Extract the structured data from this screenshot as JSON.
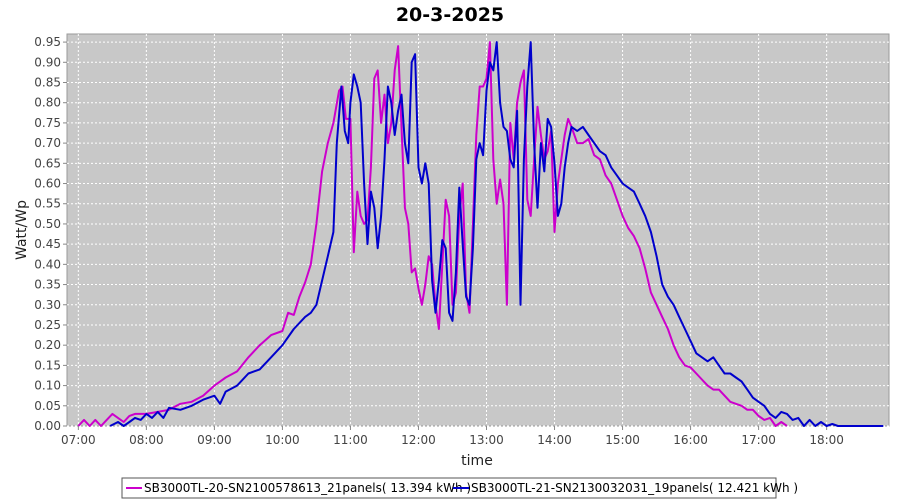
{
  "chart_data": {
    "type": "line",
    "title": "20-3-2025",
    "xlabel": "time",
    "ylabel": "Watt/Wp",
    "xlim": [
      "06:50",
      "18:55"
    ],
    "ylim": [
      0,
      0.97
    ],
    "grid": true,
    "legend_placement": "bottom-center",
    "x_ticks": [
      "07:00",
      "08:00",
      "09:00",
      "10:00",
      "11:00",
      "12:00",
      "13:00",
      "14:00",
      "15:00",
      "16:00",
      "17:00",
      "18:00"
    ],
    "y_ticks": [
      "0.00",
      "0.05",
      "0.10",
      "0.15",
      "0.20",
      "0.25",
      "0.30",
      "0.35",
      "0.40",
      "0.45",
      "0.50",
      "0.55",
      "0.60",
      "0.65",
      "0.70",
      "0.75",
      "0.80",
      "0.85",
      "0.90",
      "0.95"
    ],
    "series": [
      {
        "name": "SB3000TL-20-SN2100578613_21panels( 13.394 kWh )",
        "color": "#cc00cc",
        "points": [
          [
            "07:00",
            0.0
          ],
          [
            "07:05",
            0.015
          ],
          [
            "07:10",
            0.0
          ],
          [
            "07:15",
            0.015
          ],
          [
            "07:20",
            0.0
          ],
          [
            "07:25",
            0.015
          ],
          [
            "07:30",
            0.03
          ],
          [
            "07:35",
            0.02
          ],
          [
            "07:40",
            0.01
          ],
          [
            "07:45",
            0.025
          ],
          [
            "07:50",
            0.03
          ],
          [
            "08:00",
            0.03
          ],
          [
            "08:10",
            0.035
          ],
          [
            "08:20",
            0.04
          ],
          [
            "08:30",
            0.055
          ],
          [
            "08:40",
            0.06
          ],
          [
            "08:50",
            0.075
          ],
          [
            "09:00",
            0.1
          ],
          [
            "09:10",
            0.12
          ],
          [
            "09:20",
            0.135
          ],
          [
            "09:30",
            0.17
          ],
          [
            "09:40",
            0.2
          ],
          [
            "09:50",
            0.225
          ],
          [
            "10:00",
            0.235
          ],
          [
            "10:05",
            0.28
          ],
          [
            "10:10",
            0.275
          ],
          [
            "10:15",
            0.32
          ],
          [
            "10:20",
            0.355
          ],
          [
            "10:25",
            0.4
          ],
          [
            "10:30",
            0.5
          ],
          [
            "10:35",
            0.63
          ],
          [
            "10:40",
            0.7
          ],
          [
            "10:45",
            0.75
          ],
          [
            "10:50",
            0.83
          ],
          [
            "10:53",
            0.84
          ],
          [
            "10:56",
            0.76
          ],
          [
            "11:00",
            0.76
          ],
          [
            "11:03",
            0.43
          ],
          [
            "11:06",
            0.58
          ],
          [
            "11:09",
            0.52
          ],
          [
            "11:12",
            0.5
          ],
          [
            "11:15",
            0.51
          ],
          [
            "11:18",
            0.64
          ],
          [
            "11:21",
            0.86
          ],
          [
            "11:24",
            0.88
          ],
          [
            "11:27",
            0.75
          ],
          [
            "11:30",
            0.82
          ],
          [
            "11:33",
            0.7
          ],
          [
            "11:36",
            0.75
          ],
          [
            "11:39",
            0.88
          ],
          [
            "11:42",
            0.94
          ],
          [
            "11:45",
            0.74
          ],
          [
            "11:48",
            0.54
          ],
          [
            "11:51",
            0.5
          ],
          [
            "11:54",
            0.38
          ],
          [
            "11:57",
            0.39
          ],
          [
            "12:00",
            0.34
          ],
          [
            "12:03",
            0.3
          ],
          [
            "12:06",
            0.35
          ],
          [
            "12:09",
            0.42
          ],
          [
            "12:12",
            0.4
          ],
          [
            "12:15",
            0.3
          ],
          [
            "12:18",
            0.24
          ],
          [
            "12:21",
            0.4
          ],
          [
            "12:24",
            0.56
          ],
          [
            "12:27",
            0.52
          ],
          [
            "12:30",
            0.3
          ],
          [
            "12:33",
            0.33
          ],
          [
            "12:36",
            0.52
          ],
          [
            "12:39",
            0.6
          ],
          [
            "12:42",
            0.33
          ],
          [
            "12:45",
            0.28
          ],
          [
            "12:48",
            0.5
          ],
          [
            "12:51",
            0.72
          ],
          [
            "12:54",
            0.84
          ],
          [
            "12:57",
            0.84
          ],
          [
            "13:00",
            0.86
          ],
          [
            "13:03",
            0.95
          ],
          [
            "13:06",
            0.66
          ],
          [
            "13:09",
            0.55
          ],
          [
            "13:12",
            0.61
          ],
          [
            "13:15",
            0.55
          ],
          [
            "13:18",
            0.3
          ],
          [
            "13:21",
            0.75
          ],
          [
            "13:24",
            0.66
          ],
          [
            "13:27",
            0.8
          ],
          [
            "13:30",
            0.85
          ],
          [
            "13:33",
            0.88
          ],
          [
            "13:36",
            0.56
          ],
          [
            "13:39",
            0.52
          ],
          [
            "13:42",
            0.66
          ],
          [
            "13:45",
            0.79
          ],
          [
            "13:48",
            0.72
          ],
          [
            "13:51",
            0.66
          ],
          [
            "13:54",
            0.68
          ],
          [
            "13:57",
            0.73
          ],
          [
            "14:00",
            0.48
          ],
          [
            "14:03",
            0.6
          ],
          [
            "14:06",
            0.66
          ],
          [
            "14:09",
            0.72
          ],
          [
            "14:12",
            0.76
          ],
          [
            "14:15",
            0.74
          ],
          [
            "14:20",
            0.7
          ],
          [
            "14:25",
            0.7
          ],
          [
            "14:30",
            0.71
          ],
          [
            "14:35",
            0.67
          ],
          [
            "14:40",
            0.66
          ],
          [
            "14:45",
            0.62
          ],
          [
            "14:50",
            0.6
          ],
          [
            "14:55",
            0.56
          ],
          [
            "15:00",
            0.52
          ],
          [
            "15:05",
            0.49
          ],
          [
            "15:10",
            0.47
          ],
          [
            "15:15",
            0.44
          ],
          [
            "15:20",
            0.39
          ],
          [
            "15:25",
            0.33
          ],
          [
            "15:30",
            0.3
          ],
          [
            "15:35",
            0.27
          ],
          [
            "15:40",
            0.24
          ],
          [
            "15:45",
            0.2
          ],
          [
            "15:50",
            0.17
          ],
          [
            "15:55",
            0.15
          ],
          [
            "16:00",
            0.145
          ],
          [
            "16:05",
            0.13
          ],
          [
            "16:10",
            0.115
          ],
          [
            "16:15",
            0.1
          ],
          [
            "16:20",
            0.09
          ],
          [
            "16:25",
            0.09
          ],
          [
            "16:30",
            0.075
          ],
          [
            "16:35",
            0.06
          ],
          [
            "16:40",
            0.055
          ],
          [
            "16:45",
            0.05
          ],
          [
            "16:50",
            0.04
          ],
          [
            "16:55",
            0.04
          ],
          [
            "17:00",
            0.025
          ],
          [
            "17:05",
            0.015
          ],
          [
            "17:10",
            0.02
          ],
          [
            "17:15",
            0.0
          ],
          [
            "17:20",
            0.01
          ],
          [
            "17:25",
            0.0
          ]
        ]
      },
      {
        "name": "SB3000TL-21-SN2130032031_19panels( 12.421 kWh )",
        "color": "#0000cc",
        "points": [
          [
            "07:28",
            0.0
          ],
          [
            "07:35",
            0.01
          ],
          [
            "07:40",
            0.0
          ],
          [
            "07:45",
            0.01
          ],
          [
            "07:50",
            0.02
          ],
          [
            "07:55",
            0.015
          ],
          [
            "08:00",
            0.03
          ],
          [
            "08:05",
            0.02
          ],
          [
            "08:10",
            0.035
          ],
          [
            "08:15",
            0.02
          ],
          [
            "08:20",
            0.045
          ],
          [
            "08:30",
            0.04
          ],
          [
            "08:40",
            0.05
          ],
          [
            "08:50",
            0.065
          ],
          [
            "09:00",
            0.075
          ],
          [
            "09:05",
            0.055
          ],
          [
            "09:10",
            0.085
          ],
          [
            "09:20",
            0.1
          ],
          [
            "09:30",
            0.13
          ],
          [
            "09:40",
            0.14
          ],
          [
            "09:50",
            0.17
          ],
          [
            "10:00",
            0.2
          ],
          [
            "10:10",
            0.24
          ],
          [
            "10:20",
            0.27
          ],
          [
            "10:25",
            0.28
          ],
          [
            "10:30",
            0.3
          ],
          [
            "10:35",
            0.36
          ],
          [
            "10:40",
            0.42
          ],
          [
            "10:45",
            0.48
          ],
          [
            "10:48",
            0.7
          ],
          [
            "10:52",
            0.84
          ],
          [
            "10:55",
            0.73
          ],
          [
            "10:58",
            0.7
          ],
          [
            "11:00",
            0.8
          ],
          [
            "11:03",
            0.87
          ],
          [
            "11:06",
            0.84
          ],
          [
            "11:09",
            0.8
          ],
          [
            "11:12",
            0.6
          ],
          [
            "11:15",
            0.45
          ],
          [
            "11:18",
            0.58
          ],
          [
            "11:21",
            0.54
          ],
          [
            "11:24",
            0.44
          ],
          [
            "11:27",
            0.52
          ],
          [
            "11:30",
            0.66
          ],
          [
            "11:33",
            0.84
          ],
          [
            "11:36",
            0.8
          ],
          [
            "11:39",
            0.72
          ],
          [
            "11:42",
            0.78
          ],
          [
            "11:45",
            0.82
          ],
          [
            "11:48",
            0.7
          ],
          [
            "11:51",
            0.65
          ],
          [
            "11:54",
            0.9
          ],
          [
            "11:57",
            0.92
          ],
          [
            "12:00",
            0.64
          ],
          [
            "12:03",
            0.6
          ],
          [
            "12:06",
            0.65
          ],
          [
            "12:09",
            0.6
          ],
          [
            "12:12",
            0.36
          ],
          [
            "12:15",
            0.28
          ],
          [
            "12:18",
            0.36
          ],
          [
            "12:21",
            0.46
          ],
          [
            "12:24",
            0.44
          ],
          [
            "12:27",
            0.28
          ],
          [
            "12:30",
            0.26
          ],
          [
            "12:33",
            0.38
          ],
          [
            "12:36",
            0.59
          ],
          [
            "12:39",
            0.45
          ],
          [
            "12:42",
            0.32
          ],
          [
            "12:45",
            0.3
          ],
          [
            "12:48",
            0.44
          ],
          [
            "12:51",
            0.66
          ],
          [
            "12:54",
            0.7
          ],
          [
            "12:57",
            0.67
          ],
          [
            "13:00",
            0.83
          ],
          [
            "13:03",
            0.9
          ],
          [
            "13:06",
            0.88
          ],
          [
            "13:09",
            0.95
          ],
          [
            "13:12",
            0.8
          ],
          [
            "13:15",
            0.74
          ],
          [
            "13:18",
            0.73
          ],
          [
            "13:21",
            0.66
          ],
          [
            "13:24",
            0.64
          ],
          [
            "13:27",
            0.78
          ],
          [
            "13:30",
            0.3
          ],
          [
            "13:33",
            0.66
          ],
          [
            "13:36",
            0.84
          ],
          [
            "13:39",
            0.95
          ],
          [
            "13:42",
            0.7
          ],
          [
            "13:45",
            0.54
          ],
          [
            "13:48",
            0.7
          ],
          [
            "13:51",
            0.63
          ],
          [
            "13:54",
            0.76
          ],
          [
            "13:57",
            0.74
          ],
          [
            "14:00",
            0.65
          ],
          [
            "14:03",
            0.52
          ],
          [
            "14:06",
            0.55
          ],
          [
            "14:09",
            0.64
          ],
          [
            "14:12",
            0.7
          ],
          [
            "14:15",
            0.74
          ],
          [
            "14:20",
            0.73
          ],
          [
            "14:25",
            0.74
          ],
          [
            "14:30",
            0.72
          ],
          [
            "14:35",
            0.7
          ],
          [
            "14:40",
            0.68
          ],
          [
            "14:45",
            0.67
          ],
          [
            "14:50",
            0.64
          ],
          [
            "14:55",
            0.62
          ],
          [
            "15:00",
            0.6
          ],
          [
            "15:05",
            0.59
          ],
          [
            "15:10",
            0.58
          ],
          [
            "15:15",
            0.55
          ],
          [
            "15:20",
            0.52
          ],
          [
            "15:25",
            0.48
          ],
          [
            "15:30",
            0.42
          ],
          [
            "15:35",
            0.35
          ],
          [
            "15:40",
            0.32
          ],
          [
            "15:45",
            0.3
          ],
          [
            "15:50",
            0.27
          ],
          [
            "15:55",
            0.24
          ],
          [
            "16:00",
            0.21
          ],
          [
            "16:05",
            0.18
          ],
          [
            "16:10",
            0.17
          ],
          [
            "16:15",
            0.16
          ],
          [
            "16:20",
            0.17
          ],
          [
            "16:25",
            0.15
          ],
          [
            "16:30",
            0.13
          ],
          [
            "16:35",
            0.13
          ],
          [
            "16:40",
            0.12
          ],
          [
            "16:45",
            0.11
          ],
          [
            "16:50",
            0.09
          ],
          [
            "16:55",
            0.07
          ],
          [
            "17:00",
            0.06
          ],
          [
            "17:05",
            0.05
          ],
          [
            "17:10",
            0.03
          ],
          [
            "17:15",
            0.02
          ],
          [
            "17:20",
            0.035
          ],
          [
            "17:25",
            0.03
          ],
          [
            "17:30",
            0.015
          ],
          [
            "17:35",
            0.02
          ],
          [
            "17:40",
            0.0
          ],
          [
            "17:45",
            0.015
          ],
          [
            "17:50",
            0.0
          ],
          [
            "17:55",
            0.01
          ],
          [
            "18:00",
            0.0
          ],
          [
            "18:05",
            0.005
          ],
          [
            "18:10",
            0.0
          ],
          [
            "18:20",
            0.0
          ],
          [
            "18:30",
            0.0
          ],
          [
            "18:40",
            0.0
          ],
          [
            "18:50",
            0.0
          ]
        ]
      }
    ]
  }
}
